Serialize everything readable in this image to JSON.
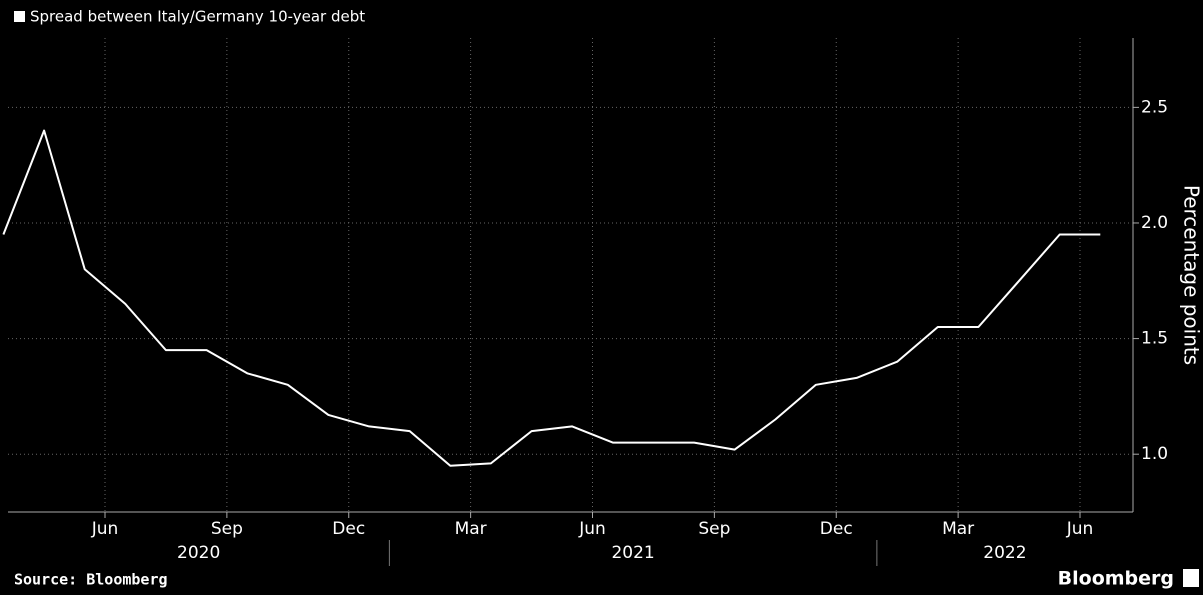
{
  "chart_data": {
    "type": "line",
    "series": [
      {
        "name": "Spread between Italy/Germany 10-year debt",
        "color": "#ffffff",
        "values": [
          1.95,
          2.4,
          1.8,
          1.65,
          1.45,
          1.45,
          1.35,
          1.3,
          1.17,
          1.12,
          1.1,
          0.95,
          0.96,
          1.1,
          1.12,
          1.05,
          1.05,
          1.05,
          1.02,
          1.15,
          1.3,
          1.33,
          1.4,
          1.55,
          1.55,
          1.75,
          1.95,
          1.95
        ]
      }
    ],
    "x": [
      "2020-03",
      "2020-04",
      "2020-05",
      "2020-06",
      "2020-07",
      "2020-08",
      "2020-09",
      "2020-10",
      "2020-11",
      "2020-12",
      "2021-01",
      "2021-02",
      "2021-03",
      "2021-04",
      "2021-05",
      "2021-06",
      "2021-07",
      "2021-08",
      "2021-09",
      "2021-10",
      "2021-11",
      "2021-12",
      "2022-01",
      "2022-02",
      "2022-03",
      "2022-04",
      "2022-05",
      "2022-06"
    ],
    "xticks": [
      {
        "value": "2020-06",
        "label": "Jun"
      },
      {
        "value": "2020-09",
        "label": "Sep"
      },
      {
        "value": "2020-12",
        "label": "Dec"
      },
      {
        "value": "2021-03",
        "label": "Mar"
      },
      {
        "value": "2021-06",
        "label": "Jun"
      },
      {
        "value": "2021-09",
        "label": "Sep"
      },
      {
        "value": "2021-12",
        "label": "Dec"
      },
      {
        "value": "2022-03",
        "label": "Mar"
      },
      {
        "value": "2022-06",
        "label": "Jun"
      }
    ],
    "years": [
      "2020",
      "2021",
      "2022"
    ],
    "ylim": [
      0.75,
      2.8
    ],
    "yticks": [
      {
        "value": 1,
        "label": "1.0"
      },
      1.5,
      {
        "value": 2,
        "label": "2.0"
      },
      2.5
    ],
    "ylabel": "Percentage points",
    "grid": true,
    "source": "Source: Bloomberg",
    "brand": "Bloomberg"
  }
}
